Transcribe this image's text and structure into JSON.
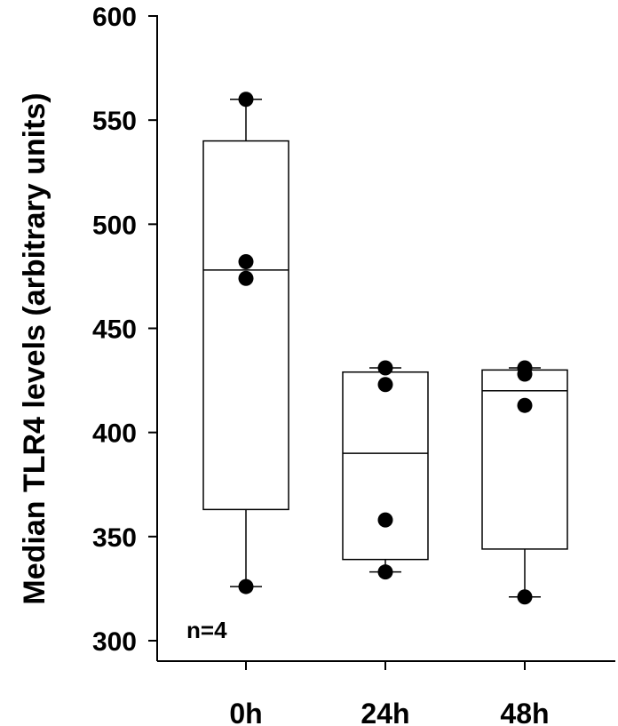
{
  "chart_data": {
    "type": "box",
    "ylabel": "Median TLR4 levels (arbitrary units)",
    "xlabel": "",
    "title": "",
    "ylim": [
      300,
      600
    ],
    "yticks": [
      300,
      350,
      400,
      450,
      500,
      550,
      600
    ],
    "categories": [
      "0h",
      "24h",
      "48h"
    ],
    "boxes": [
      {
        "category": "0h",
        "whisker_low": 326,
        "q1": 363,
        "median": 478,
        "q3": 540,
        "whisker_high": 560
      },
      {
        "category": "24h",
        "whisker_low": 333,
        "q1": 339,
        "median": 390,
        "q3": 429,
        "whisker_high": 431
      },
      {
        "category": "48h",
        "whisker_low": 321,
        "q1": 344,
        "median": 420,
        "q3": 430,
        "whisker_high": 431
      }
    ],
    "points": [
      {
        "category": "0h",
        "values": [
          560,
          482,
          474,
          326
        ]
      },
      {
        "category": "24h",
        "values": [
          431,
          423,
          358,
          333
        ]
      },
      {
        "category": "48h",
        "values": [
          431,
          428,
          413,
          321
        ]
      }
    ],
    "annotation": "n=4",
    "grid": false,
    "legend": "none"
  }
}
